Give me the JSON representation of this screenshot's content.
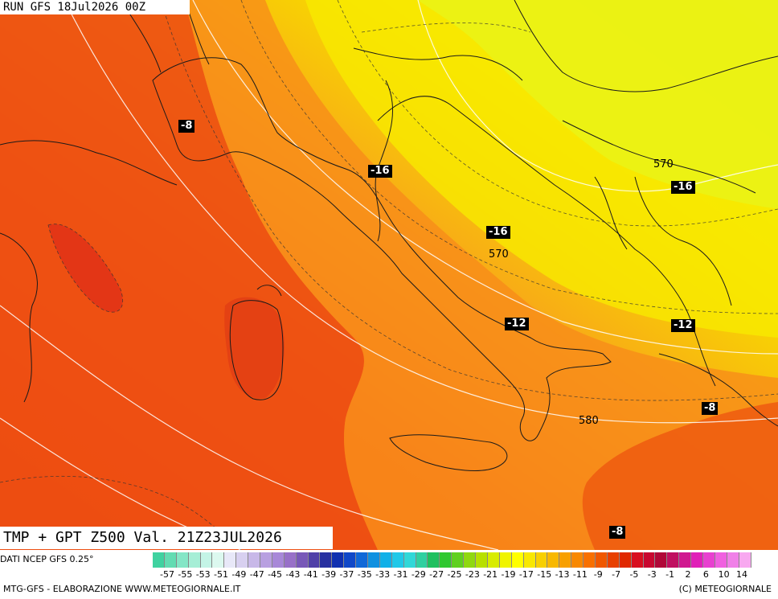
{
  "header": {
    "run_label": "RUN GFS 18Jul2026 00Z"
  },
  "map_title": "TMP + GPT Z500 Val. 21Z23JUL2026",
  "temperature_labels": [
    {
      "id": "t1",
      "text": "-8"
    },
    {
      "id": "t2",
      "text": "-16"
    },
    {
      "id": "t3",
      "text": "-16"
    },
    {
      "id": "t4",
      "text": "-16"
    },
    {
      "id": "t5",
      "text": "-12"
    },
    {
      "id": "t6",
      "text": "-12"
    },
    {
      "id": "t7",
      "text": "-8"
    },
    {
      "id": "t8",
      "text": "-8"
    }
  ],
  "geopotential_labels": [
    {
      "id": "g1",
      "text": "570"
    },
    {
      "id": "g2",
      "text": "570"
    },
    {
      "id": "g3",
      "text": "580"
    }
  ],
  "legend": {
    "source": "DATI NCEP GFS 0.25°",
    "ticks": [
      "-57",
      "-55",
      "-53",
      "-51",
      "-49",
      "-47",
      "-45",
      "-43",
      "-41",
      "-39",
      "-37",
      "-35",
      "-33",
      "-31",
      "-29",
      "-27",
      "-25",
      "-23",
      "-21",
      "-19",
      "-17",
      "-15",
      "-13",
      "-11",
      "-9",
      "-7",
      "-5",
      "-3",
      "-1",
      "2",
      "6",
      "10",
      "14"
    ],
    "colors": [
      "#3fd2a0",
      "#62dcb2",
      "#84e6c6",
      "#a6eed6",
      "#c4f4e6",
      "#dcf8ef",
      "#e8e8f8",
      "#d8d0f0",
      "#c8b8e8",
      "#b8a0e0",
      "#a888d8",
      "#9870c8",
      "#7858b8",
      "#5040a8",
      "#2830a0",
      "#1030b0",
      "#1048c8",
      "#1068d8",
      "#1090e0",
      "#10b0e8",
      "#20c8e8",
      "#30d8d8",
      "#30d0a0",
      "#20c060",
      "#30c830",
      "#60d020",
      "#90d810",
      "#b8e000",
      "#d8ec00",
      "#f0f400",
      "#ffff00",
      "#f8e800",
      "#f8d000",
      "#f8b800",
      "#f8a000",
      "#f88800",
      "#f87000",
      "#f05800",
      "#e84000",
      "#e02800",
      "#d81020",
      "#c80830",
      "#b00838",
      "#c01060",
      "#d01890",
      "#e020b8",
      "#e840d0",
      "#f060e0",
      "#f080e8",
      "#f8a8f0"
    ],
    "footer_left": "MTG-GFS - ELABORAZIONE WWW.METEOGIORNALE.IT",
    "footer_right": "(C) METEOGIORNALE"
  }
}
